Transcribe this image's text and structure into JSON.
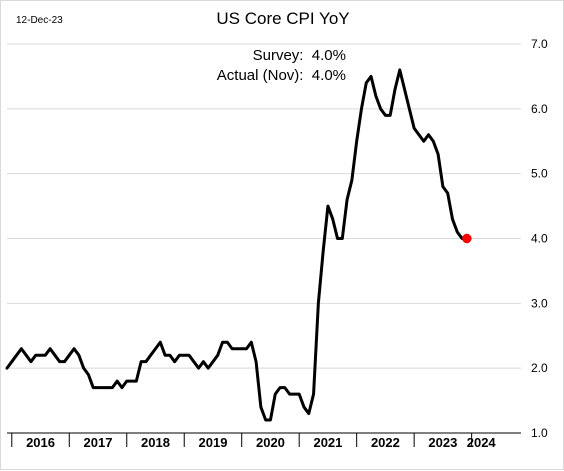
{
  "date_stamp": "12-Dec-23",
  "annotations": {
    "survey": "Survey:  4.0%",
    "actual": "Actual (Nov):  4.0%"
  },
  "colors": {
    "line": "#000000",
    "marker": "#ff0000",
    "grid": "#d9d9d9"
  },
  "chart_data": {
    "type": "line",
    "title": "US Core CPI YoY",
    "ylim": [
      1.0,
      7.0
    ],
    "y_ticks": [
      "7.0",
      "6.0",
      "5.0",
      "4.0",
      "3.0",
      "2.0",
      "1.0"
    ],
    "x_start": "2015-12",
    "x_end": "2024-04",
    "x_year_labels": [
      "2016",
      "2017",
      "2018",
      "2019",
      "2020",
      "2021",
      "2022",
      "2023",
      "2024"
    ],
    "grid": "horizontal",
    "highlight_last_point": true,
    "series": [
      {
        "values": [
          2.0,
          2.1,
          2.2,
          2.3,
          2.2,
          2.1,
          2.2,
          2.2,
          2.2,
          2.3,
          2.2,
          2.1,
          2.1,
          2.2,
          2.3,
          2.2,
          2.0,
          1.9,
          1.7,
          1.7,
          1.7,
          1.7,
          1.7,
          1.8,
          1.7,
          1.8,
          1.8,
          1.8,
          2.1,
          2.1,
          2.2,
          2.3,
          2.4,
          2.2,
          2.2,
          2.1,
          2.2,
          2.2,
          2.2,
          2.1,
          2.0,
          2.1,
          2.0,
          2.1,
          2.2,
          2.4,
          2.4,
          2.3,
          2.3,
          2.3,
          2.3,
          2.4,
          2.1,
          1.4,
          1.2,
          1.2,
          1.6,
          1.7,
          1.7,
          1.6,
          1.6,
          1.6,
          1.4,
          1.3,
          1.6,
          3.0,
          3.8,
          4.5,
          4.3,
          4.0,
          4.0,
          4.6,
          4.9,
          5.5,
          6.0,
          6.4,
          6.5,
          6.2,
          6.0,
          5.9,
          5.9,
          6.3,
          6.6,
          6.3,
          6.0,
          5.7,
          5.6,
          5.5,
          5.6,
          5.5,
          5.3,
          4.8,
          4.7,
          4.3,
          4.1,
          4.0,
          4.0
        ]
      }
    ]
  }
}
